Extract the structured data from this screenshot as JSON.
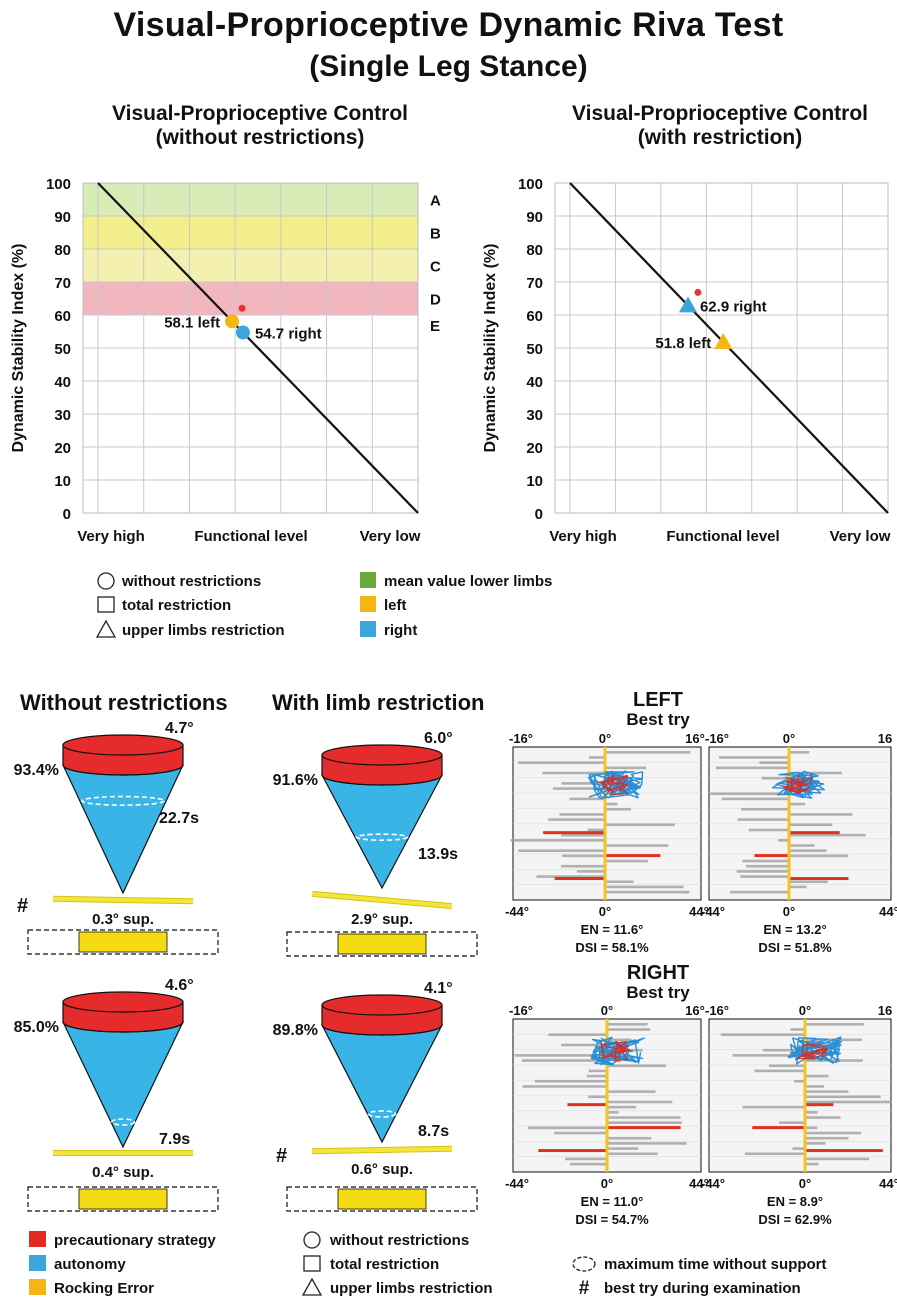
{
  "title": "Visual-Proprioceptive Dynamic Riva Test",
  "subtitle": "(Single Leg Stance)",
  "chart_data": [
    {
      "type": "scatter",
      "title_line1": "Visual-Proprioceptive Control",
      "title_line2": "(without restrictions)",
      "ylabel": "Dynamic Stability Index (%)",
      "ylim": [
        0,
        100
      ],
      "yticks": [
        "0",
        "10",
        "20",
        "30",
        "40",
        "50",
        "60",
        "70",
        "80",
        "90",
        "100"
      ],
      "xtick_labels": [
        "Very high",
        "Functional level",
        "Very low"
      ],
      "bands": [
        {
          "label": "A",
          "from": 90,
          "to": 100,
          "color": "#d8ecb8"
        },
        {
          "label": "B",
          "from": 80,
          "to": 90,
          "color": "#f2ef8c"
        },
        {
          "label": "C",
          "from": 70,
          "to": 80,
          "color": "#f4f0b0"
        },
        {
          "label": "D",
          "from": 60,
          "to": 70,
          "color": "#f2b6bf"
        },
        {
          "label": "E",
          "from": null,
          "to": 60,
          "color": "#ffffff"
        }
      ],
      "points": [
        {
          "shape": "circle",
          "side": "left",
          "value": 58.1,
          "label": "58.1 left",
          "color": "#f5b514",
          "marker": true
        },
        {
          "shape": "circle",
          "side": "right",
          "value": 54.7,
          "label": "54.7 right",
          "color": "#3aa6dc",
          "marker": false
        }
      ]
    },
    {
      "type": "scatter",
      "title_line1": "Visual-Proprioceptive Control",
      "title_line2": "(with restriction)",
      "ylabel": "Dynamic Stability Index (%)",
      "ylim": [
        0,
        100
      ],
      "yticks": [
        "0",
        "10",
        "20",
        "30",
        "40",
        "50",
        "60",
        "70",
        "80",
        "90",
        "100"
      ],
      "xtick_labels": [
        "Very high",
        "Functional level",
        "Very low"
      ],
      "points": [
        {
          "shape": "triangle",
          "side": "right",
          "value": 62.9,
          "label": "62.9 right",
          "color": "#3aa6dc",
          "marker": true
        },
        {
          "shape": "triangle",
          "side": "left",
          "value": 51.8,
          "label": "51.8 left",
          "color": "#f5b514",
          "marker": false
        }
      ]
    }
  ],
  "legend_top": {
    "shapes": [
      "without restrictions",
      "total restriction",
      "upper limbs restriction"
    ],
    "colors": [
      {
        "label": "mean value lower limbs",
        "color": "#6aaa3a"
      },
      {
        "label": "left",
        "color": "#f5b514"
      },
      {
        "label": "right",
        "color": "#3aa6dc"
      }
    ]
  },
  "cones": {
    "col_titles": [
      "Without restrictions",
      "With limb restriction"
    ],
    "items": [
      {
        "angle": "4.7°",
        "pct": "93.4%",
        "time": "22.7s",
        "sup": "0.3° sup.",
        "best": true,
        "tilt": -1,
        "ring": 0.72
      },
      {
        "angle": "6.0°",
        "pct": "91.6%",
        "time": "13.9s",
        "sup": "2.9° sup.",
        "best": false,
        "tilt": -5,
        "ring": 0.45
      },
      {
        "angle": "4.6°",
        "pct": "85.0%",
        "time": "7.9s",
        "sup": "0.4° sup.",
        "best": false,
        "tilt": 0,
        "ring": 0.2
      },
      {
        "angle": "4.1°",
        "pct": "89.8%",
        "time": "8.7s",
        "sup": "0.6° sup.",
        "best": true,
        "tilt": 1,
        "ring": 0.24
      }
    ],
    "hash": "#"
  },
  "stabilograms": {
    "left_title": "LEFT",
    "right_title": "RIGHT",
    "best_try": "Best try",
    "top_ticks_left": [
      "-16°",
      "0°",
      "16°"
    ],
    "top_ticks_right": [
      "-16°",
      "0°",
      "16"
    ],
    "bottom_ticks_left": [
      "-44°",
      "0°",
      "44°"
    ],
    "bottom_ticks_right": [
      "-44°",
      "0°",
      "44°"
    ],
    "panels": [
      {
        "en": "EN = 11.6°",
        "dsi": "DSI = 58.1%"
      },
      {
        "en": "EN = 13.2°",
        "dsi": "DSI = 51.8%"
      },
      {
        "en": "EN = 11.0°",
        "dsi": "DSI = 54.7%"
      },
      {
        "en": "EN = 8.9°",
        "dsi": "DSI = 62.9%"
      }
    ]
  },
  "legend_bottom": {
    "colors": [
      {
        "label": "precautionary strategy",
        "color": "#e32a20"
      },
      {
        "label": "autonomy",
        "color": "#3aa6dc"
      },
      {
        "label": "Rocking Error",
        "color": "#f5b514"
      }
    ],
    "shapes": [
      "without restrictions",
      "total restriction",
      "upper limbs restriction"
    ],
    "misc": [
      "maximum time without support",
      "best try during examination"
    ]
  }
}
